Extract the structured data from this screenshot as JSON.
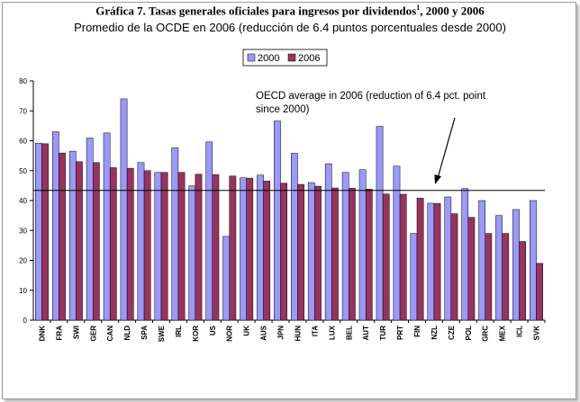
{
  "title_main": "Gráfica 7. Tasas generales oficiales para ingresos por dividendos",
  "title_sup": "1",
  "title_tail": ", 2000 y 2006",
  "subtitle": "Promedio de la OCDE en 2006 (reducción de 6.4 puntos porcentuales desde 2000)",
  "chart_data": {
    "type": "bar",
    "categories": [
      "DNK",
      "FRA",
      "SWI",
      "GER",
      "CAN",
      "NLD",
      "SPA",
      "SWE",
      "IRL",
      "KOR",
      "US",
      "NOR",
      "UK",
      "AUS",
      "JPN",
      "HUN",
      "ITA",
      "LUX",
      "BEL",
      "AUT",
      "TUR",
      "PRT",
      "FIN",
      "NZL",
      "CZE",
      "POL",
      "GRC",
      "MEX",
      "ICL",
      "SVK"
    ],
    "series": [
      {
        "name": "2000",
        "color": "#9999ff",
        "values": [
          59.2,
          63,
          56.5,
          60.9,
          62.6,
          74,
          52.7,
          49.4,
          57.7,
          44.9,
          59.6,
          28,
          47.6,
          48.5,
          66.6,
          55.8,
          46,
          52.3,
          49.4,
          50.3,
          64.8,
          51.5,
          29,
          39.1,
          41.2,
          44,
          40,
          35,
          37,
          40
        ]
      },
      {
        "name": "2006",
        "color": "#99335d",
        "values": [
          59,
          55.9,
          53,
          52.7,
          51,
          50.8,
          50,
          49.4,
          49.4,
          48.8,
          48.7,
          48.2,
          47.5,
          46.5,
          45.8,
          45.4,
          44.8,
          44.2,
          44.1,
          43.8,
          42.2,
          42.1,
          40.8,
          39,
          35.6,
          34.4,
          29,
          29,
          26.3,
          19
        ]
      }
    ],
    "ylim": [
      0,
      80
    ],
    "yticks": [
      0,
      10,
      20,
      30,
      40,
      50,
      60,
      70,
      80
    ],
    "oecd_average": 43.4,
    "annotation_line1": "OECD average in 2006 (reduction of 6.4 pct. point",
    "annotation_line2": "since 2000)",
    "legend_position": "top-center",
    "grid": false
  }
}
